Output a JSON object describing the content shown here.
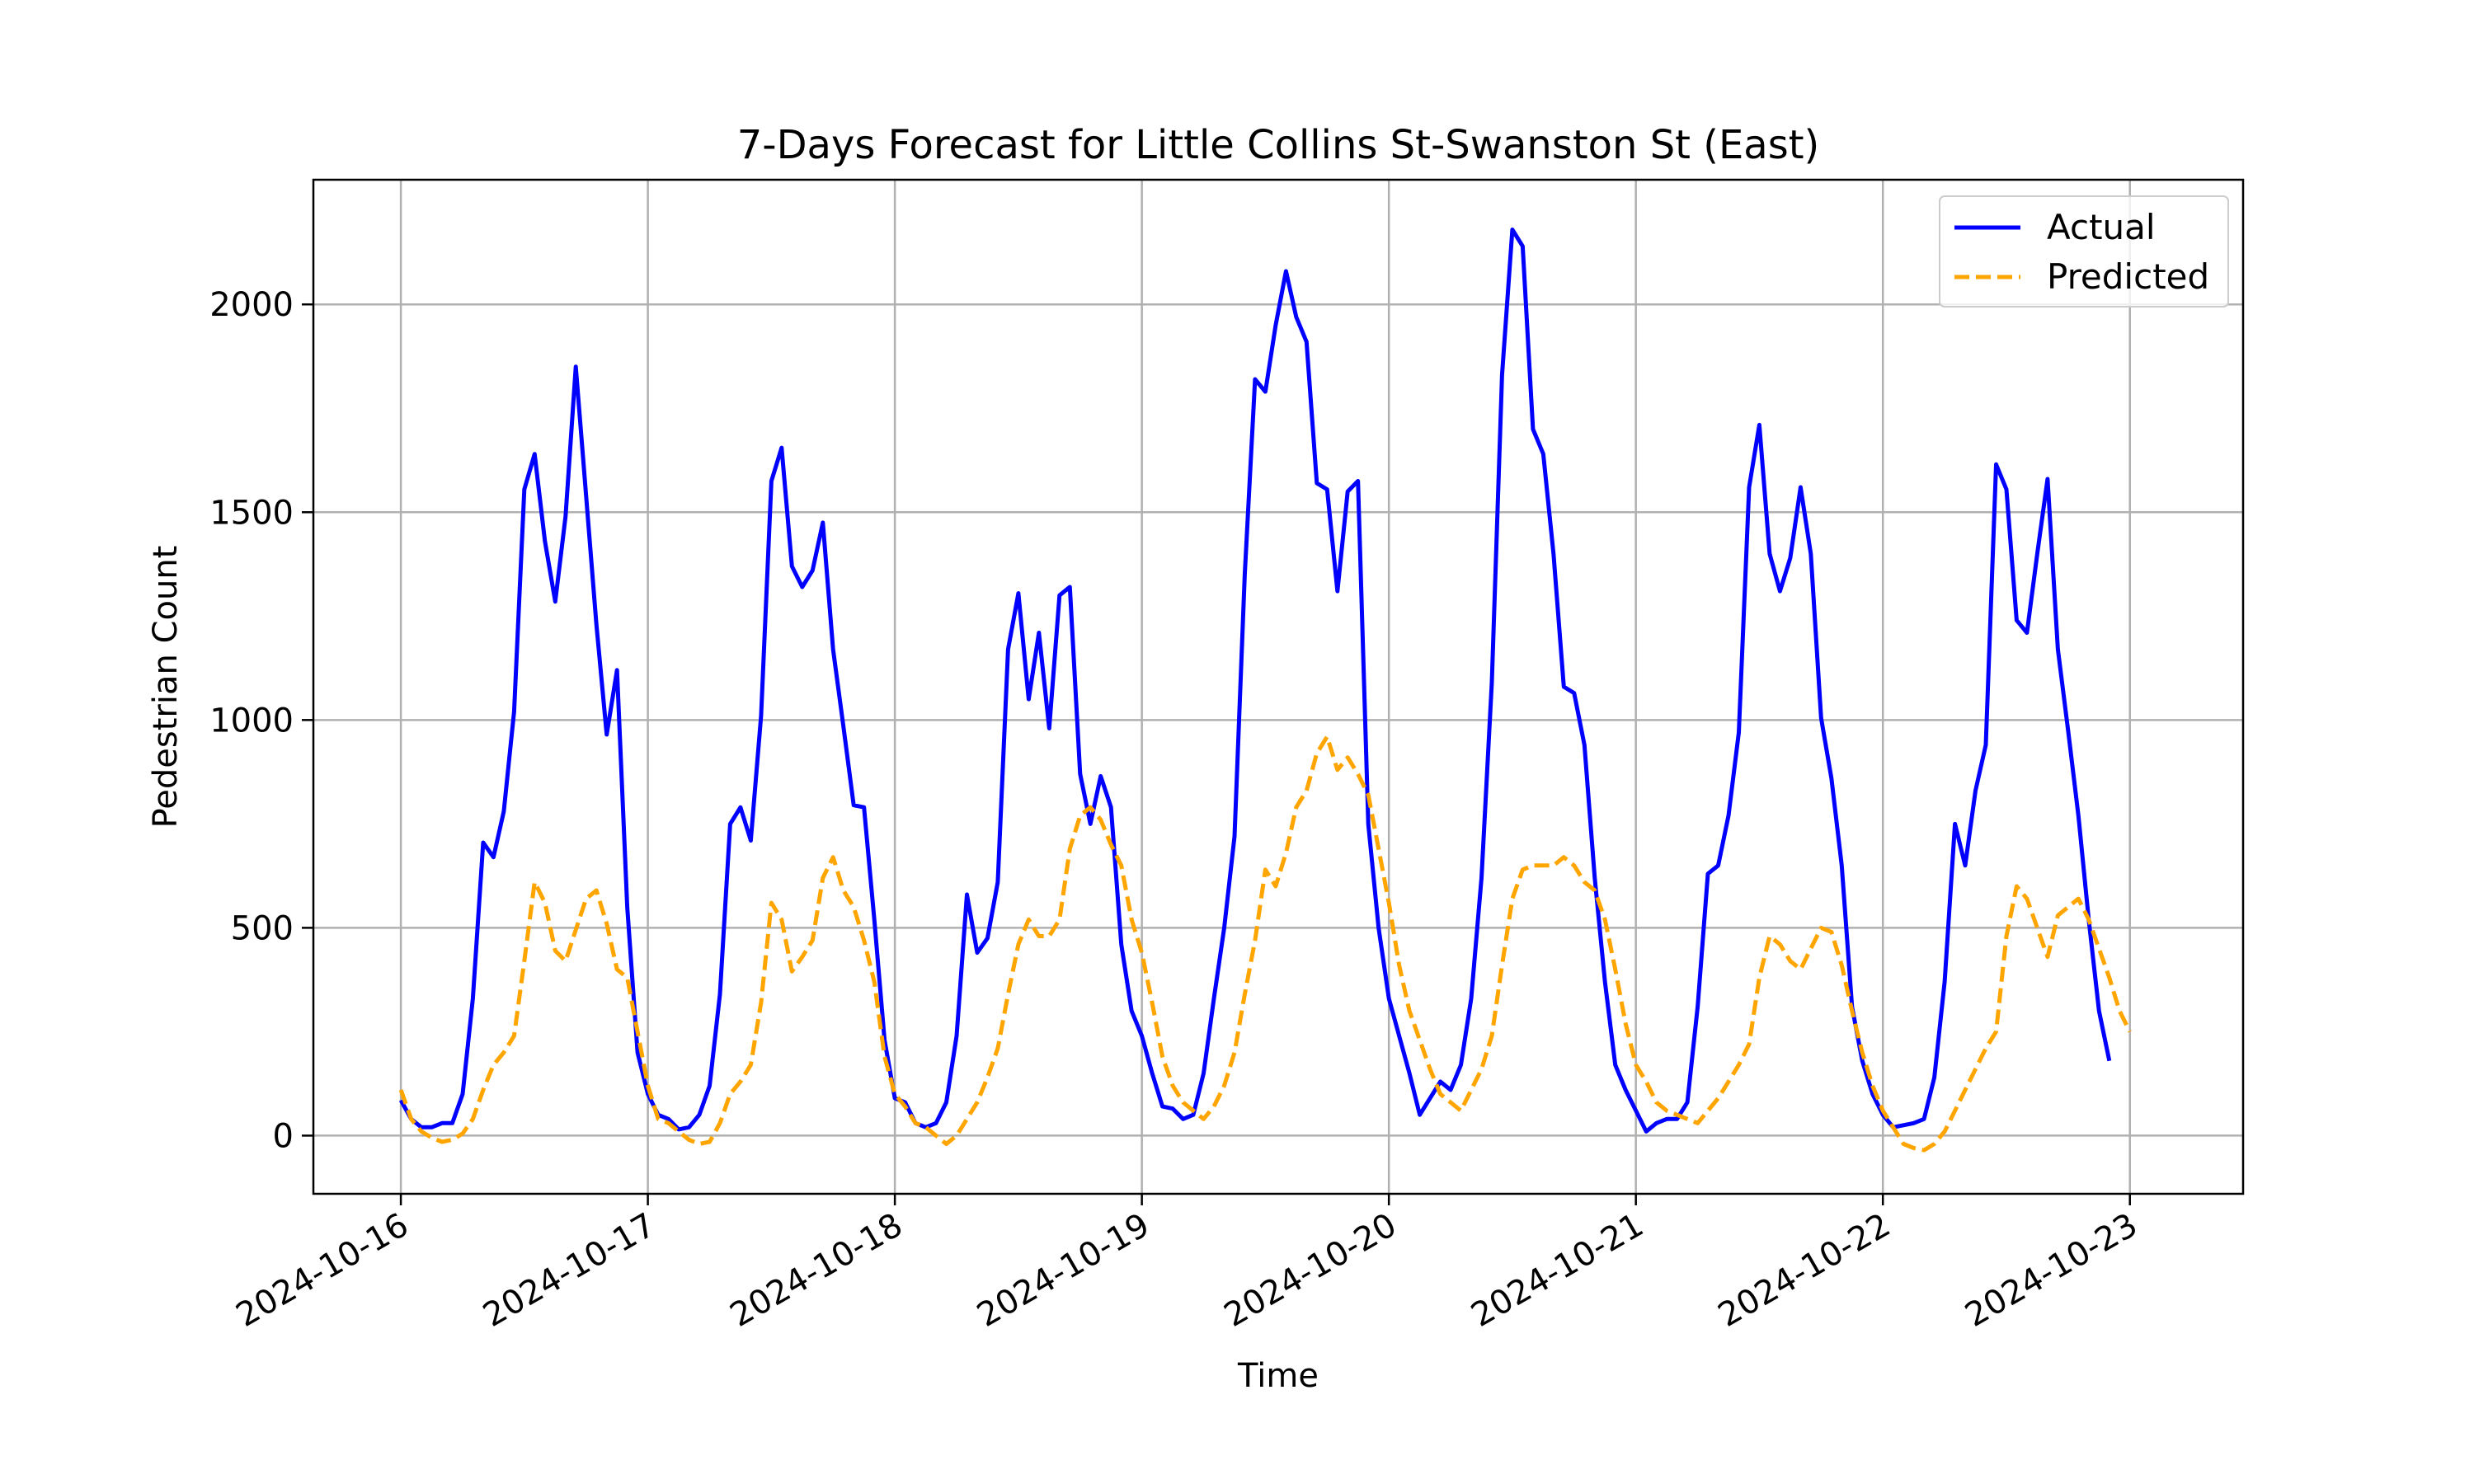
{
  "chart_data": {
    "type": "line",
    "title": "7-Days Forecast for Little Collins St-Swanston St (East)",
    "xlabel": "Time",
    "ylabel": "Pedestrian Count",
    "x_start": "2024-10-16 00:00",
    "x_step_hours": 1,
    "x_range": [
      "2024-10-15 15:30",
      "2024-10-23 11:00"
    ],
    "xticks": [
      "2024-10-16",
      "2024-10-17",
      "2024-10-18",
      "2024-10-19",
      "2024-10-20",
      "2024-10-21",
      "2024-10-22",
      "2024-10-23"
    ],
    "ylim": [
      -140,
      2300
    ],
    "yticks": [
      0,
      500,
      1000,
      1500,
      2000
    ],
    "grid": true,
    "legend_position": "upper right",
    "series": [
      {
        "name": "Actual",
        "color": "#0000ff",
        "style": "solid",
        "values": [
          85,
          40,
          20,
          20,
          30,
          30,
          100,
          330,
          705,
          670,
          780,
          1020,
          1555,
          1640,
          1430,
          1285,
          1490,
          1850,
          1540,
          1230,
          965,
          1120,
          550,
          200,
          100,
          50,
          40,
          15,
          20,
          50,
          120,
          340,
          750,
          790,
          710,
          1010,
          1575,
          1655,
          1370,
          1320,
          1360,
          1475,
          1170,
          985,
          795,
          790,
          520,
          230,
          90,
          80,
          30,
          20,
          30,
          80,
          240,
          580,
          440,
          475,
          610,
          1170,
          1305,
          1050,
          1210,
          980,
          1300,
          1320,
          870,
          750,
          865,
          790,
          460,
          300,
          240,
          150,
          70,
          65,
          40,
          50,
          150,
          330,
          500,
          720,
          1350,
          1820,
          1790,
          1950,
          2080,
          1970,
          1910,
          1570,
          1555,
          1310,
          1550,
          1575,
          750,
          500,
          330,
          240,
          150,
          50,
          90,
          130,
          110,
          170,
          330,
          620,
          1090,
          1830,
          2180,
          2140,
          1700,
          1640,
          1400,
          1080,
          1065,
          940,
          620,
          370,
          170,
          110,
          60,
          10,
          30,
          40,
          40,
          80,
          310,
          630,
          650,
          770,
          970,
          1560,
          1710,
          1400,
          1310,
          1390,
          1560,
          1400,
          1005,
          860,
          650,
          310,
          180,
          100,
          50,
          20,
          25,
          30,
          40,
          140,
          370,
          750,
          650,
          830,
          940,
          1615,
          1555,
          1240,
          1210,
          1400,
          1580,
          1170,
          975,
          770,
          520,
          300,
          180
        ]
      },
      {
        "name": "Predicted",
        "color": "#ffa500",
        "style": "dashed",
        "values": [
          110,
          40,
          10,
          -5,
          -15,
          -10,
          5,
          40,
          110,
          170,
          200,
          240,
          420,
          610,
          560,
          445,
          420,
          495,
          570,
          590,
          510,
          400,
          380,
          250,
          120,
          40,
          30,
          10,
          -10,
          -20,
          -15,
          30,
          100,
          130,
          170,
          320,
          560,
          520,
          395,
          430,
          470,
          620,
          670,
          590,
          550,
          470,
          370,
          190,
          100,
          70,
          30,
          20,
          0,
          -20,
          0,
          40,
          80,
          140,
          210,
          340,
          460,
          520,
          480,
          480,
          520,
          690,
          770,
          790,
          760,
          700,
          650,
          520,
          440,
          320,
          190,
          120,
          80,
          60,
          40,
          70,
          120,
          200,
          340,
          470,
          640,
          600,
          680,
          790,
          830,
          920,
          960,
          880,
          910,
          870,
          820,
          690,
          560,
          410,
          300,
          230,
          160,
          100,
          80,
          60,
          110,
          160,
          240,
          410,
          570,
          640,
          650,
          650,
          650,
          670,
          650,
          610,
          590,
          520,
          400,
          270,
          170,
          130,
          80,
          60,
          50,
          40,
          30,
          60,
          90,
          130,
          170,
          220,
          380,
          480,
          460,
          420,
          400,
          450,
          500,
          490,
          410,
          300,
          200,
          120,
          60,
          20,
          -20,
          -30,
          -35,
          -20,
          10,
          60,
          110,
          160,
          210,
          250,
          480,
          600,
          570,
          500,
          430,
          530,
          550,
          570,
          520,
          450,
          380,
          300,
          250
        ]
      }
    ]
  }
}
